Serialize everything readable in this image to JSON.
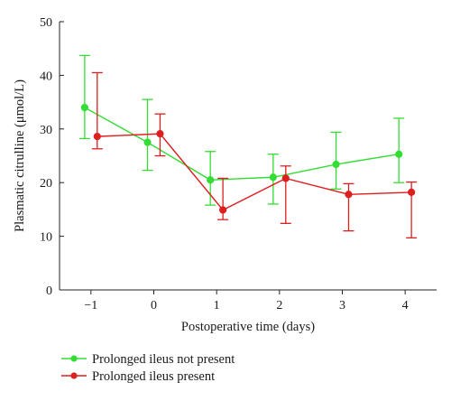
{
  "chart_data": {
    "type": "line",
    "xlabel": "Postoperative time (days)",
    "ylabel": "Plasmatic citrulline (μmol/L)",
    "xlim": [
      -1.5,
      4.5
    ],
    "ylim": [
      0,
      50
    ],
    "x_ticks": [
      -1,
      0,
      1,
      2,
      3,
      4
    ],
    "x_tick_labels": [
      "−1",
      "0",
      "1",
      "2",
      "3",
      "4"
    ],
    "y_ticks": [
      0,
      10,
      20,
      30,
      40,
      50
    ],
    "y_tick_labels": [
      "0",
      "10",
      "20",
      "30",
      "40",
      "50"
    ],
    "grid": false,
    "legend_position": "bottom-left",
    "series": [
      {
        "name": "Prolonged ileus not present",
        "color": "#33dd33",
        "x": [
          -1.1,
          -0.1,
          0.9,
          1.9,
          2.9,
          3.9
        ],
        "y": [
          34.0,
          27.5,
          20.5,
          21.0,
          23.4,
          25.3
        ],
        "err_low": [
          28.2,
          22.3,
          15.8,
          16.0,
          18.8,
          20.0
        ],
        "err_high": [
          43.7,
          35.5,
          25.8,
          25.3,
          29.4,
          32.0
        ]
      },
      {
        "name": "Prolonged ileus present",
        "color": "#dd1f1f",
        "x": [
          -0.9,
          0.1,
          1.1,
          2.1,
          3.1,
          4.1
        ],
        "y": [
          28.6,
          29.1,
          14.9,
          20.8,
          17.8,
          18.2
        ],
        "err_low": [
          26.3,
          25.0,
          13.1,
          12.4,
          11.0,
          9.7
        ],
        "err_high": [
          40.5,
          32.8,
          20.8,
          23.1,
          19.8,
          20.1
        ]
      }
    ]
  }
}
